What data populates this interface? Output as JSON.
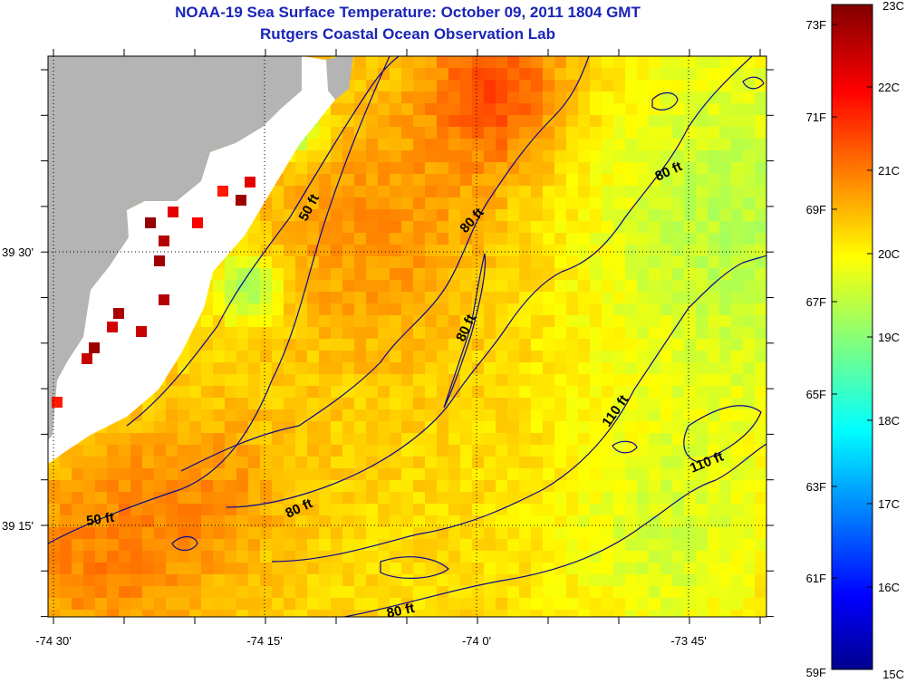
{
  "header": {
    "title": "NOAA-19 Sea Surface Temperature:  October 09, 2011 1804 GMT",
    "subtitle": "Rutgers Coastal Ocean Observation Lab"
  },
  "axes": {
    "x_ticks": [
      "-74 30'",
      "-74 15'",
      "-74 0'",
      "-73 45'"
    ],
    "y_ticks": [
      "39 30'",
      "39 15'"
    ]
  },
  "contour_labels": [
    "50 ft",
    "80 ft",
    "80 ft",
    "80 ft",
    "110 ft",
    "110 ft",
    "80 ft",
    "80 ft",
    "50 ft"
  ],
  "colorbar": {
    "fahrenheit_labels": [
      "73F",
      "71F",
      "69F",
      "67F",
      "65F",
      "63F",
      "61F",
      "59F"
    ],
    "celsius_labels": [
      "23C",
      "22C",
      "21C",
      "20C",
      "19C",
      "18C",
      "17C",
      "16C",
      "15C"
    ],
    "range_c": [
      15,
      23
    ],
    "colormap": "jet"
  },
  "colors": {
    "title": "#1a24b8",
    "land": "#b4b4b4",
    "contour": "#0a0a8c"
  }
}
